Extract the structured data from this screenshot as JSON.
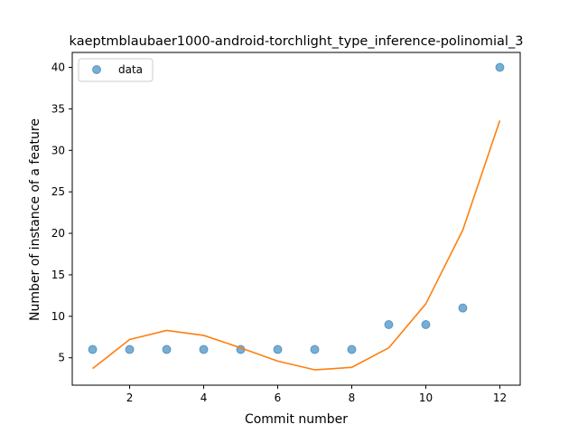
{
  "chart_data": {
    "type": "scatter",
    "title": "kaeptmblaubaer1000-android-torchlight_type_inference-polinomial_3",
    "xlabel": "Commit number",
    "ylabel": "Number of instance of a feature",
    "xlim": [
      0.45,
      12.55
    ],
    "ylim": [
      1.7,
      41.8
    ],
    "xticks": [
      2,
      4,
      6,
      8,
      10,
      12
    ],
    "yticks": [
      5,
      10,
      15,
      20,
      25,
      30,
      35,
      40
    ],
    "legend": {
      "placement": "top-left",
      "entries": [
        "data"
      ]
    },
    "series": [
      {
        "name": "data",
        "kind": "scatter",
        "color": "#1f77b4",
        "x": [
          1,
          2,
          3,
          4,
          5,
          6,
          7,
          8,
          9,
          10,
          11,
          12
        ],
        "y": [
          6,
          6,
          6,
          6,
          6,
          6,
          6,
          6,
          9,
          9,
          11,
          40
        ]
      },
      {
        "kind": "line",
        "color": "#ff7f0e",
        "x": [
          1,
          2,
          3,
          4,
          5,
          6,
          7,
          8,
          9,
          10,
          11,
          12
        ],
        "y": [
          3.7,
          7.2,
          8.3,
          7.7,
          6.2,
          4.6,
          3.55,
          3.85,
          6.2,
          11.5,
          20.4,
          33.6
        ]
      }
    ]
  }
}
